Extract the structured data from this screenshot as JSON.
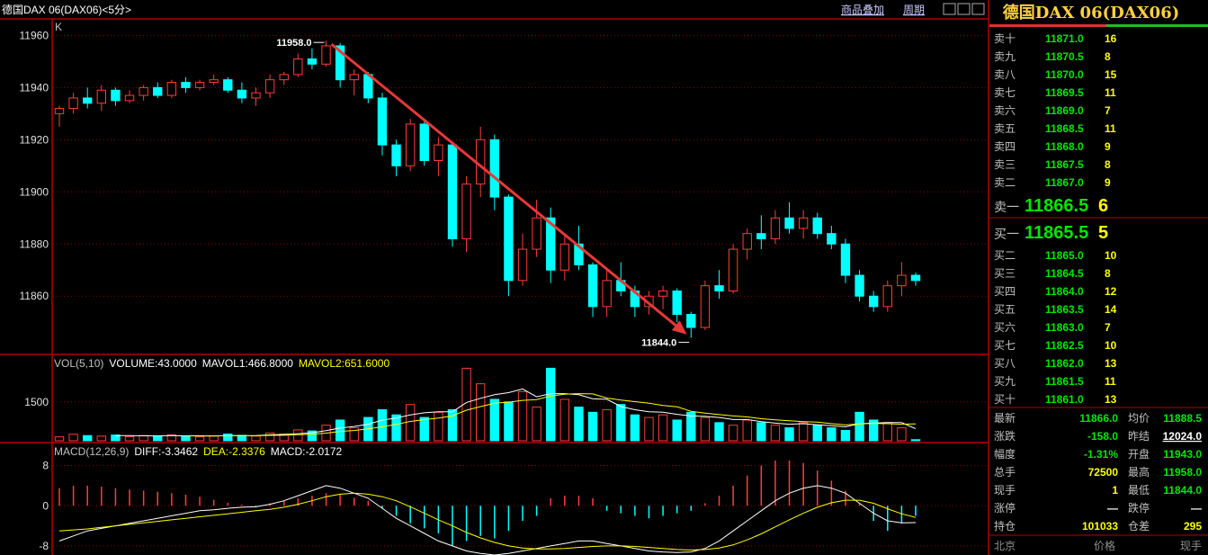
{
  "header": {
    "title": "德国DAX 06(DAX06)<5分>",
    "overlay": "商品叠加",
    "period": "周期"
  },
  "chart_data": [
    {
      "type": "candlestick",
      "corner_label": "K",
      "up_color": "#ff3c3c",
      "down_color": "#00ffff",
      "grid": true,
      "ylim": [
        11838,
        11966
      ],
      "yticks": [
        11860,
        11880,
        11900,
        11920,
        11940,
        11960
      ],
      "open": [
        11930,
        11932,
        11936,
        11934,
        11939,
        11935,
        11937,
        11940,
        11937,
        11942,
        11940,
        11942,
        11943,
        11939,
        11936,
        11938,
        11943,
        11945,
        11951,
        11949,
        11956,
        11943,
        11945,
        11936,
        11918,
        11910,
        11926,
        11912,
        11918,
        11882,
        11903,
        11920,
        11898,
        11866,
        11878,
        11890,
        11870,
        11880,
        11872,
        11856,
        11866,
        11862,
        11856,
        11860,
        11862,
        11853,
        11848,
        11864,
        11862,
        11878,
        11884,
        11882,
        11890,
        11886,
        11890,
        11884,
        11880,
        11868,
        11860,
        11856,
        11864,
        11868
      ],
      "high": [
        11933,
        11938,
        11940,
        11941,
        11940,
        11939,
        11941,
        11942,
        11943,
        11944,
        11943,
        11945,
        11944,
        11942,
        11940,
        11945,
        11946,
        11953,
        11955,
        11958,
        11957,
        11947,
        11946,
        11938,
        11920,
        11928,
        11928,
        11921,
        11919,
        11906,
        11925,
        11922,
        11899,
        11884,
        11897,
        11894,
        11884,
        11887,
        11873,
        11870,
        11873,
        11864,
        11862,
        11864,
        11863,
        11854,
        11866,
        11870,
        11880,
        11886,
        11891,
        11893,
        11896,
        11893,
        11892,
        11887,
        11882,
        11870,
        11862,
        11866,
        11873,
        11869
      ],
      "low": [
        11925,
        11930,
        11932,
        11931,
        11933,
        11934,
        11935,
        11936,
        11936,
        11938,
        11939,
        11941,
        11938,
        11934,
        11933,
        11936,
        11941,
        11944,
        11947,
        11948,
        11940,
        11937,
        11934,
        11914,
        11906,
        11908,
        11910,
        11906,
        11879,
        11877,
        11898,
        11893,
        11860,
        11864,
        11875,
        11865,
        11866,
        11870,
        11852,
        11852,
        11860,
        11852,
        11853,
        11855,
        11850,
        11844,
        11847,
        11859,
        11861,
        11874,
        11878,
        11880,
        11884,
        11882,
        11882,
        11878,
        11865,
        11858,
        11854,
        11854,
        11860,
        11864
      ],
      "close": [
        11932,
        11936,
        11934,
        11939,
        11935,
        11937,
        11940,
        11937,
        11942,
        11940,
        11942,
        11943,
        11939,
        11936,
        11938,
        11943,
        11945,
        11951,
        11949,
        11956,
        11943,
        11945,
        11936,
        11918,
        11910,
        11926,
        11912,
        11918,
        11882,
        11903,
        11920,
        11898,
        11866,
        11878,
        11890,
        11870,
        11880,
        11872,
        11856,
        11866,
        11862,
        11856,
        11860,
        11862,
        11853,
        11848,
        11864,
        11862,
        11878,
        11884,
        11882,
        11890,
        11886,
        11890,
        11884,
        11880,
        11868,
        11860,
        11856,
        11864,
        11868,
        11866
      ],
      "annotations": [
        {
          "value": 11958,
          "label": "11958.0"
        },
        {
          "value": 11844,
          "label": "11844.0"
        }
      ]
    },
    {
      "type": "volume",
      "grid": true,
      "ylim": [
        0,
        3300
      ],
      "yticks": [
        1500
      ],
      "header": [
        {
          "text": "VOL(5,10)",
          "color": "#c0c0c0"
        },
        {
          "text": "VOLUME:43.0000",
          "color": "#ffffff"
        },
        {
          "text": "MAVOL1:466.8000",
          "color": "#ffffff"
        },
        {
          "text": "MAVOL2:651.6000",
          "color": "#ffff00"
        }
      ],
      "values": [
        150,
        250,
        200,
        180,
        220,
        160,
        200,
        180,
        230,
        170,
        150,
        190,
        260,
        210,
        180,
        300,
        260,
        420,
        380,
        600,
        800,
        500,
        900,
        1200,
        1000,
        1400,
        900,
        1100,
        1200,
        2800,
        2200,
        1600,
        1500,
        1900,
        1300,
        2800,
        1600,
        1300,
        1100,
        1200,
        1400,
        1000,
        900,
        1000,
        800,
        1100,
        900,
        700,
        600,
        800,
        700,
        600,
        500,
        700,
        600,
        500,
        400,
        1100,
        800,
        700,
        500,
        43
      ],
      "lines": [
        {
          "color": "#ffffff",
          "values": [
            null,
            null,
            null,
            null,
            200,
            202,
            192,
            188,
            198,
            188,
            186,
            184,
            200,
            196,
            198,
            228,
            242,
            274,
            308,
            392,
            492,
            552,
            640,
            800,
            880,
            1000,
            1080,
            1120,
            1120,
            1480,
            1640,
            1780,
            1860,
            2000,
            1700,
            1820,
            1820,
            1780,
            1620,
            1600,
            1320,
            1200,
            1120,
            1100,
            1020,
            960,
            940,
            900,
            820,
            820,
            740,
            680,
            640,
            660,
            620,
            580,
            540,
            660,
            680,
            700,
            700,
            466.8
          ]
        },
        {
          "color": "#ffff00",
          "values": [
            null,
            null,
            null,
            null,
            null,
            null,
            null,
            null,
            null,
            194,
            194,
            188,
            194,
            197,
            193,
            207,
            213,
            237,
            252,
            295,
            360,
            397,
            457,
            537,
            636,
            746,
            816,
            880,
            960,
            1180,
            1320,
            1450,
            1490,
            1560,
            1590,
            1730,
            1800,
            1820,
            1810,
            1650,
            1570,
            1510,
            1450,
            1360,
            1310,
            1140,
            1070,
            1010,
            960,
            920,
            850,
            810,
            770,
            740,
            720,
            660,
            610,
            650,
            670,
            660,
            640,
            651.6
          ]
        }
      ]
    },
    {
      "type": "macd",
      "grid": true,
      "ylim": [
        -9.8,
        12.4
      ],
      "yticks": [
        -8,
        0,
        8
      ],
      "pos_color": "#ff3c3c",
      "neg_color": "#00ffff",
      "header": [
        {
          "text": "MACD(12,26,9)",
          "color": "#c0c0c0"
        },
        {
          "text": "DIFF:-3.3462",
          "color": "#ffffff"
        },
        {
          "text": "DEA:-2.3376",
          "color": "#ffff00"
        },
        {
          "text": "MACD:-2.0172",
          "color": "#ffffff"
        }
      ],
      "values": [
        3.5,
        4,
        4,
        3.8,
        3.5,
        3.2,
        3,
        2.8,
        2.5,
        2.2,
        1.8,
        1.2,
        0.6,
        0.2,
        -0.3,
        0.5,
        1,
        1.5,
        2,
        2.5,
        2.2,
        1.6,
        1,
        -0.5,
        -2,
        -3.5,
        -4.5,
        -5.5,
        -8,
        -7,
        -6,
        -6.5,
        -5,
        -3,
        -2,
        1.5,
        2,
        2,
        1.5,
        -1,
        -1.5,
        -2,
        -2.5,
        -2,
        -1.5,
        -1,
        0.5,
        2,
        4,
        6,
        8,
        9,
        9,
        8.5,
        7,
        5,
        3,
        0.5,
        -3,
        -5,
        -3.5,
        -2.0172
      ],
      "lines": [
        {
          "color": "#ffffff",
          "values": [
            -7,
            -6,
            -5,
            -4.5,
            -4,
            -3.5,
            -3,
            -2.5,
            -2,
            -1.5,
            -1,
            -0.8,
            -0.5,
            -0.3,
            -0.2,
            0.3,
            1,
            2,
            3,
            4,
            3.5,
            2.5,
            1.5,
            -0.5,
            -2.5,
            -4,
            -5.5,
            -7,
            -8,
            -9,
            -9.5,
            -9.8,
            -9.5,
            -9,
            -8.5,
            -8,
            -7.5,
            -7,
            -7,
            -7.5,
            -8,
            -8.5,
            -9,
            -9.2,
            -9.3,
            -9.2,
            -8.5,
            -7,
            -5,
            -3,
            -1,
            1,
            2.5,
            3.5,
            4,
            3.5,
            2.5,
            0.5,
            -1.5,
            -3,
            -3.4,
            -3.3462
          ]
        },
        {
          "color": "#ffff00",
          "values": [
            -5,
            -4.8,
            -4.6,
            -4.3,
            -4,
            -3.7,
            -3.4,
            -3.1,
            -2.8,
            -2.5,
            -2.2,
            -1.9,
            -1.6,
            -1.3,
            -1,
            -0.7,
            -0.3,
            0.3,
            1,
            1.8,
            2.3,
            2.5,
            2.3,
            1.8,
            1,
            -0.2,
            -1.5,
            -2.8,
            -4,
            -5.3,
            -6.4,
            -7.3,
            -8,
            -8.4,
            -8.6,
            -8.6,
            -8.5,
            -8.3,
            -8.1,
            -8,
            -8,
            -8.1,
            -8.3,
            -8.5,
            -8.7,
            -8.8,
            -8.7,
            -8.4,
            -7.8,
            -6.8,
            -5.6,
            -4.2,
            -2.8,
            -1.5,
            -0.3,
            0.6,
            1.1,
            1.1,
            0.5,
            -0.6,
            -1.6,
            -2.3376
          ]
        }
      ]
    }
  ],
  "panel": {
    "title": "德国DAX 06(DAX06)",
    "sell": [
      {
        "label": "卖十",
        "price": "11871.0",
        "qty": "16"
      },
      {
        "label": "卖九",
        "price": "11870.5",
        "qty": "8"
      },
      {
        "label": "卖八",
        "price": "11870.0",
        "qty": "15"
      },
      {
        "label": "卖七",
        "price": "11869.5",
        "qty": "11"
      },
      {
        "label": "卖六",
        "price": "11869.0",
        "qty": "7"
      },
      {
        "label": "卖五",
        "price": "11868.5",
        "qty": "11"
      },
      {
        "label": "卖四",
        "price": "11868.0",
        "qty": "9"
      },
      {
        "label": "卖三",
        "price": "11867.5",
        "qty": "8"
      },
      {
        "label": "卖二",
        "price": "11867.0",
        "qty": "9"
      }
    ],
    "best_sell": {
      "label": "卖一",
      "price": "11866.5",
      "qty": "6"
    },
    "best_buy": {
      "label": "买一",
      "price": "11865.5",
      "qty": "5"
    },
    "buy": [
      {
        "label": "买二",
        "price": "11865.0",
        "qty": "10"
      },
      {
        "label": "买三",
        "price": "11864.5",
        "qty": "8"
      },
      {
        "label": "买四",
        "price": "11864.0",
        "qty": "12"
      },
      {
        "label": "买五",
        "price": "11863.5",
        "qty": "14"
      },
      {
        "label": "买六",
        "price": "11863.0",
        "qty": "7"
      },
      {
        "label": "买七",
        "price": "11862.5",
        "qty": "10"
      },
      {
        "label": "买八",
        "price": "11862.0",
        "qty": "13"
      },
      {
        "label": "买九",
        "price": "11861.5",
        "qty": "11"
      },
      {
        "label": "买十",
        "price": "11861.0",
        "qty": "13"
      }
    ],
    "quote": [
      [
        {
          "label": "最新",
          "value": "11866.0",
          "color": "#00e600"
        },
        {
          "label": "均价",
          "value": "11888.5",
          "color": "#00e600"
        }
      ],
      [
        {
          "label": "涨跌",
          "value": "-158.0",
          "color": "#00e600"
        },
        {
          "label": "昨结",
          "value": "12024.0",
          "color": "#ffffff"
        }
      ],
      [
        {
          "label": "幅度",
          "value": "-1.31%",
          "color": "#00e600"
        },
        {
          "label": "开盘",
          "value": "11943.0",
          "color": "#00e600"
        }
      ],
      [
        {
          "label": "总手",
          "value": "72500",
          "color": "#ffff00"
        },
        {
          "label": "最高",
          "value": "11958.0",
          "color": "#00e600"
        }
      ],
      [
        {
          "label": "现手",
          "value": "1",
          "color": "#ffff00"
        },
        {
          "label": "最低",
          "value": "11844.0",
          "color": "#00e600"
        }
      ],
      [
        {
          "label": "涨停",
          "value": "—",
          "color": "#ffffff"
        },
        {
          "label": "跌停",
          "value": "—",
          "color": "#ffffff"
        }
      ],
      [
        {
          "label": "持仓",
          "value": "101033",
          "color": "#ffff00"
        },
        {
          "label": "仓差",
          "value": "295",
          "color": "#ffff00"
        }
      ]
    ],
    "footer": [
      "北京",
      "价格",
      "现手"
    ]
  }
}
